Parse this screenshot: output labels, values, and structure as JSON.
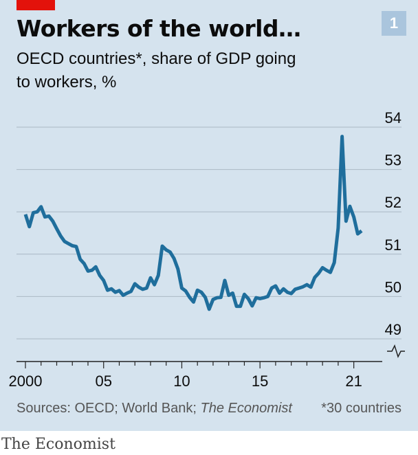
{
  "header": {
    "title": "Workers of the world…",
    "badge": "1",
    "subtitle_line1": "OECD countries*, share of GDP going",
    "subtitle_line2": "to workers, %"
  },
  "chart_data": {
    "type": "line",
    "title": "Workers of the world…",
    "ylabel": "share of GDP going to workers, %",
    "xlabel": "",
    "ylim": [
      49,
      54
    ],
    "y_ticks": [
      49,
      50,
      51,
      52,
      53,
      54
    ],
    "y_tick_labels": [
      "49",
      "50",
      "51",
      "52",
      "53",
      "54"
    ],
    "x_tick_labels": [
      {
        "t": 2000,
        "label": "2000"
      },
      {
        "t": 2005,
        "label": "05"
      },
      {
        "t": 2010,
        "label": "10"
      },
      {
        "t": 2015,
        "label": "15"
      },
      {
        "t": 2021,
        "label": "21"
      }
    ],
    "axis_break": true,
    "series": [
      {
        "name": "OECD countries*",
        "color": "#1f6e9c",
        "points": [
          [
            2000.0,
            51.94
          ],
          [
            2000.25,
            51.65
          ],
          [
            2000.5,
            51.98
          ],
          [
            2000.75,
            52.0
          ],
          [
            2001.0,
            52.12
          ],
          [
            2001.25,
            51.88
          ],
          [
            2001.5,
            51.9
          ],
          [
            2001.75,
            51.78
          ],
          [
            2002.0,
            51.6
          ],
          [
            2002.25,
            51.43
          ],
          [
            2002.5,
            51.3
          ],
          [
            2002.75,
            51.25
          ],
          [
            2003.0,
            51.2
          ],
          [
            2003.25,
            51.18
          ],
          [
            2003.5,
            50.88
          ],
          [
            2003.75,
            50.78
          ],
          [
            2004.0,
            50.6
          ],
          [
            2004.25,
            50.62
          ],
          [
            2004.5,
            50.7
          ],
          [
            2004.75,
            50.5
          ],
          [
            2005.0,
            50.38
          ],
          [
            2005.25,
            50.15
          ],
          [
            2005.5,
            50.18
          ],
          [
            2005.75,
            50.1
          ],
          [
            2006.0,
            50.14
          ],
          [
            2006.25,
            50.03
          ],
          [
            2006.5,
            50.08
          ],
          [
            2006.75,
            50.12
          ],
          [
            2007.0,
            50.3
          ],
          [
            2007.25,
            50.22
          ],
          [
            2007.5,
            50.17
          ],
          [
            2007.75,
            50.2
          ],
          [
            2008.0,
            50.44
          ],
          [
            2008.25,
            50.28
          ],
          [
            2008.5,
            50.5
          ],
          [
            2008.75,
            51.19
          ],
          [
            2009.0,
            51.1
          ],
          [
            2009.25,
            51.05
          ],
          [
            2009.5,
            50.9
          ],
          [
            2009.75,
            50.65
          ],
          [
            2010.0,
            50.2
          ],
          [
            2010.25,
            50.13
          ],
          [
            2010.5,
            49.98
          ],
          [
            2010.75,
            49.87
          ],
          [
            2011.0,
            50.15
          ],
          [
            2011.25,
            50.1
          ],
          [
            2011.5,
            49.98
          ],
          [
            2011.75,
            49.7
          ],
          [
            2012.0,
            49.93
          ],
          [
            2012.25,
            49.97
          ],
          [
            2012.5,
            49.98
          ],
          [
            2012.75,
            50.38
          ],
          [
            2013.0,
            50.03
          ],
          [
            2013.25,
            50.08
          ],
          [
            2013.5,
            49.77
          ],
          [
            2013.75,
            49.77
          ],
          [
            2014.0,
            50.05
          ],
          [
            2014.25,
            49.95
          ],
          [
            2014.5,
            49.78
          ],
          [
            2014.75,
            49.97
          ],
          [
            2015.0,
            49.95
          ],
          [
            2015.25,
            49.97
          ],
          [
            2015.5,
            50.0
          ],
          [
            2015.75,
            50.2
          ],
          [
            2016.0,
            50.25
          ],
          [
            2016.25,
            50.08
          ],
          [
            2016.5,
            50.18
          ],
          [
            2016.75,
            50.1
          ],
          [
            2017.0,
            50.07
          ],
          [
            2017.25,
            50.17
          ],
          [
            2017.5,
            50.2
          ],
          [
            2017.75,
            50.23
          ],
          [
            2018.0,
            50.28
          ],
          [
            2018.25,
            50.22
          ],
          [
            2018.5,
            50.45
          ],
          [
            2018.75,
            50.55
          ],
          [
            2019.0,
            50.68
          ],
          [
            2019.25,
            50.62
          ],
          [
            2019.5,
            50.57
          ],
          [
            2019.75,
            50.8
          ],
          [
            2020.0,
            51.62
          ],
          [
            2020.25,
            53.78
          ],
          [
            2020.5,
            51.78
          ],
          [
            2020.75,
            52.13
          ],
          [
            2021.0,
            51.88
          ],
          [
            2021.25,
            51.48
          ],
          [
            2021.5,
            51.55
          ]
        ]
      }
    ],
    "footnote": "*30 countries",
    "sources": "Sources: OECD; World Bank;",
    "sources_italic": "The Economist"
  },
  "footer": {
    "brand": "The Economist"
  }
}
